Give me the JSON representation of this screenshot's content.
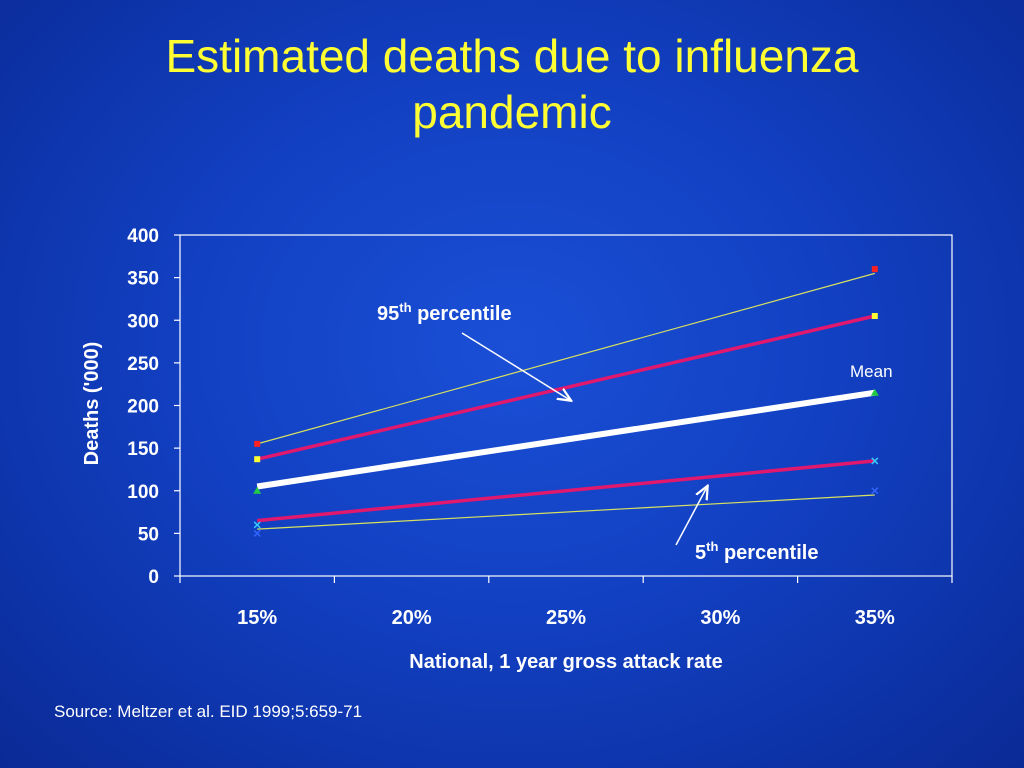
{
  "title_line1": "Estimated deaths due to influenza",
  "title_line2": "pandemic",
  "source": "Source: Meltzer et al. EID 1999;5:659-71",
  "colors": {
    "title": "#ffff33",
    "text": "#ffffff",
    "mean": "#ffffff",
    "percentile_95": "#e0186e",
    "percentile_5": "#e0186e",
    "upper_bound": "#d8e060",
    "lower_bound": "#d8e060"
  },
  "chart_data": {
    "type": "line",
    "xlabel": "National, 1 year gross attack rate",
    "ylabel": "Deaths ('000)",
    "categories": [
      "15%",
      "20%",
      "25%",
      "30%",
      "35%"
    ],
    "ylim": [
      0,
      400
    ],
    "yticks": [
      "0",
      "50",
      "100",
      "150",
      "200",
      "250",
      "300",
      "350",
      "400"
    ],
    "grid": false,
    "series": [
      {
        "key": "upper_bound",
        "x": [
          "15%",
          "35%"
        ],
        "values": [
          155,
          355
        ]
      },
      {
        "key": "percentile_95",
        "x": [
          "15%",
          "35%"
        ],
        "values": [
          137,
          305
        ]
      },
      {
        "name": "Mean",
        "key": "mean",
        "x": [
          "15%",
          "35%"
        ],
        "values": [
          105,
          215
        ]
      },
      {
        "key": "percentile_5",
        "x": [
          "15%",
          "35%"
        ],
        "values": [
          65,
          135
        ]
      },
      {
        "key": "lower_bound",
        "x": [
          "15%",
          "35%"
        ],
        "values": [
          55,
          95
        ]
      }
    ],
    "markers": [
      {
        "x": "15%",
        "y": 155,
        "shape": "square",
        "color": "#ff2020"
      },
      {
        "x": "15%",
        "y": 137,
        "shape": "square",
        "color": "#ffff33"
      },
      {
        "x": "15%",
        "y": 100,
        "shape": "triangle",
        "color": "#22cc44"
      },
      {
        "x": "15%",
        "y": 60,
        "shape": "x",
        "color": "#33ccff"
      },
      {
        "x": "15%",
        "y": 50,
        "shape": "x",
        "color": "#3366ff"
      },
      {
        "x": "35%",
        "y": 360,
        "shape": "square",
        "color": "#ff2020"
      },
      {
        "x": "35%",
        "y": 305,
        "shape": "square",
        "color": "#ffff33"
      },
      {
        "x": "35%",
        "y": 215,
        "shape": "triangle",
        "color": "#22cc44"
      },
      {
        "x": "35%",
        "y": 135,
        "shape": "x",
        "color": "#33ccff"
      },
      {
        "x": "35%",
        "y": 100,
        "shape": "x",
        "color": "#3366ff"
      }
    ],
    "annotations": [
      {
        "id": "p95",
        "base": "95",
        "sup": "th",
        "rest": " percentile"
      },
      {
        "id": "p5",
        "base": "5",
        "sup": "th",
        "rest": " percentile"
      },
      {
        "id": "mean",
        "text": "Mean"
      }
    ]
  }
}
